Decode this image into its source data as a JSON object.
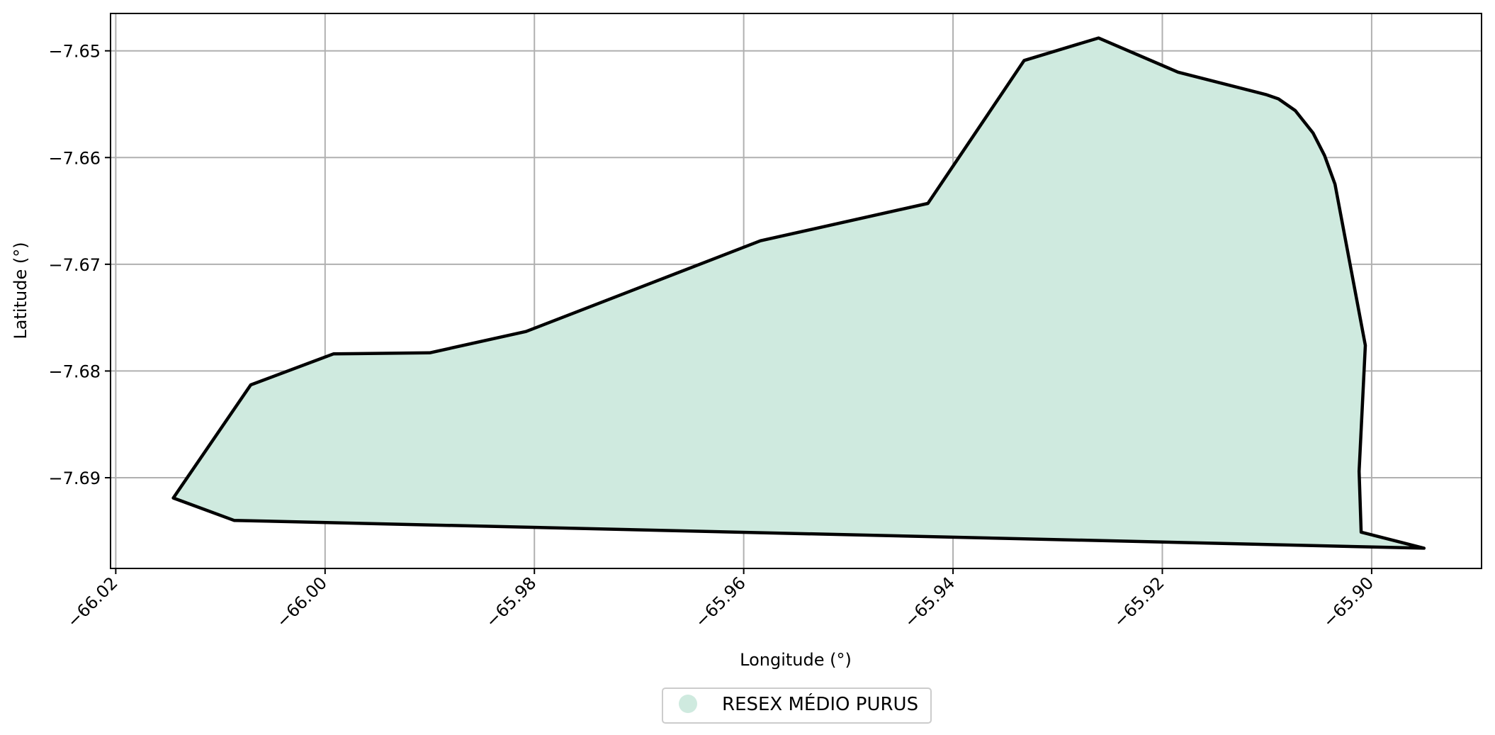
{
  "chart_data": {
    "type": "area",
    "xlabel": "Longitude (°)",
    "ylabel": "Latitude (°)",
    "xlim": [
      -66.0205,
      -65.8895
    ],
    "ylim": [
      -7.6985,
      -7.6465
    ],
    "xticks": [
      -66.02,
      -66.0,
      -65.98,
      -65.96,
      -65.94,
      -65.92,
      -65.9
    ],
    "xtick_labels": [
      "−66.02",
      "−66.00",
      "−65.98",
      "−65.96",
      "−65.94",
      "−65.92",
      "−65.90"
    ],
    "yticks": [
      -7.65,
      -7.66,
      -7.67,
      -7.68,
      -7.69
    ],
    "ytick_labels": [
      "−7.65",
      "−7.66",
      "−7.67",
      "−7.68",
      "−7.69"
    ],
    "grid": true,
    "legend_position": "bottom-center",
    "fill_color": "#cfeadf",
    "edge_color": "#000000",
    "grid_color": "#b0b0b0",
    "series": [
      {
        "name": "RESEX MÉDIO PURUS",
        "polygon": [
          [
            -66.0145,
            -7.6919
          ],
          [
            -66.0071,
            -7.6813
          ],
          [
            -65.9992,
            -7.6784
          ],
          [
            -65.99,
            -7.6783
          ],
          [
            -65.9808,
            -7.6763
          ],
          [
            -65.9584,
            -7.6678
          ],
          [
            -65.9424,
            -7.6643
          ],
          [
            -65.9332,
            -7.6509
          ],
          [
            -65.9261,
            -7.6488
          ],
          [
            -65.9185,
            -7.652
          ],
          [
            -65.9101,
            -7.6541
          ],
          [
            -65.9089,
            -7.6545
          ],
          [
            -65.9073,
            -7.6556
          ],
          [
            -65.9056,
            -7.6577
          ],
          [
            -65.9045,
            -7.6598
          ],
          [
            -65.9035,
            -7.6625
          ],
          [
            -65.9006,
            -7.6776
          ],
          [
            -65.9012,
            -7.6894
          ],
          [
            -65.901,
            -7.6951
          ],
          [
            -65.895,
            -7.6966
          ],
          [
            -66.0087,
            -7.694
          ],
          [
            -66.0145,
            -7.6919
          ]
        ]
      }
    ]
  }
}
